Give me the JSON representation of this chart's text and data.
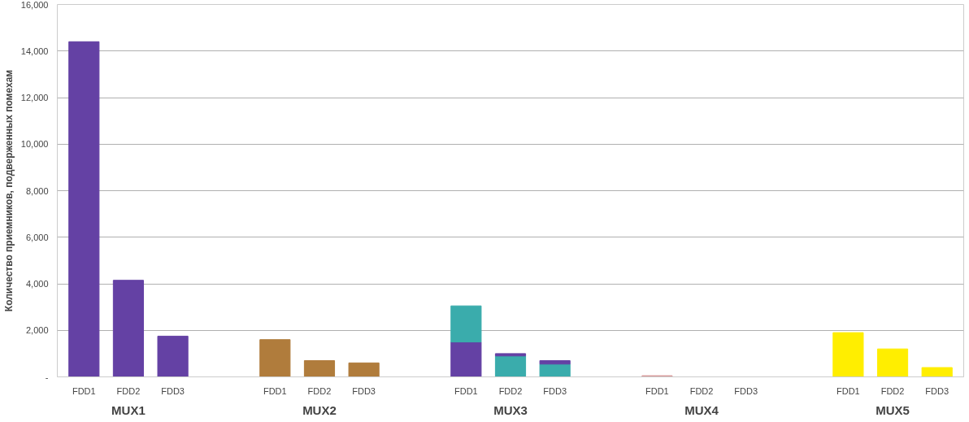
{
  "chart_data": {
    "type": "bar",
    "stacked": true,
    "ylabel": "Количество приемников, подверженных помехам",
    "categories": [
      "FDD1",
      "FDD2",
      "FDD3",
      "FDD1",
      "FDD2",
      "FDD3",
      "FDD1",
      "FDD2",
      "FDD3",
      "FDD1",
      "FDD2",
      "FDD3",
      "FDD1",
      "FDD2",
      "FDD3"
    ],
    "series": [
      {
        "colors": [
          "#6441a4",
          "#6441a4",
          "#6441a4",
          "#b07c3c",
          "#b07c3c",
          "#b07c3c",
          "#6441a4",
          "#3aacac",
          "#3aacac",
          "#d89a9a",
          null,
          null,
          "#ffee00",
          "#ffee00",
          "#ffee00"
        ],
        "values": [
          14400,
          4150,
          1750,
          1600,
          700,
          600,
          1500,
          900,
          550,
          50,
          null,
          null,
          1900,
          1200,
          400
        ]
      },
      {
        "color": "#3aacac",
        "values": [
          null,
          null,
          null,
          null,
          null,
          null,
          1550,
          null,
          null,
          null,
          null,
          null,
          null,
          null,
          null
        ]
      },
      {
        "color": "#6441a4",
        "values": [
          null,
          null,
          null,
          null,
          null,
          null,
          null,
          100,
          150,
          null,
          null,
          null,
          null,
          null,
          null
        ]
      }
    ],
    "annotations": [
      "MUX1",
      "MUX2",
      "MUX3",
      "MUX4",
      "MUX5"
    ],
    "ylim": [
      0,
      16000
    ],
    "yticks": [
      {
        "value": 0,
        "label": "-"
      },
      {
        "value": 2000,
        "label": "2,000"
      },
      {
        "value": 4000,
        "label": "4,000"
      },
      {
        "value": 6000,
        "label": "6,000"
      },
      {
        "value": 8000,
        "label": "8,000"
      },
      {
        "value": 10000,
        "label": "10,000"
      },
      {
        "value": 12000,
        "label": "12,000"
      },
      {
        "value": 14000,
        "label": "14,000"
      },
      {
        "value": 16000,
        "label": "16,000"
      }
    ],
    "grid": "y"
  }
}
